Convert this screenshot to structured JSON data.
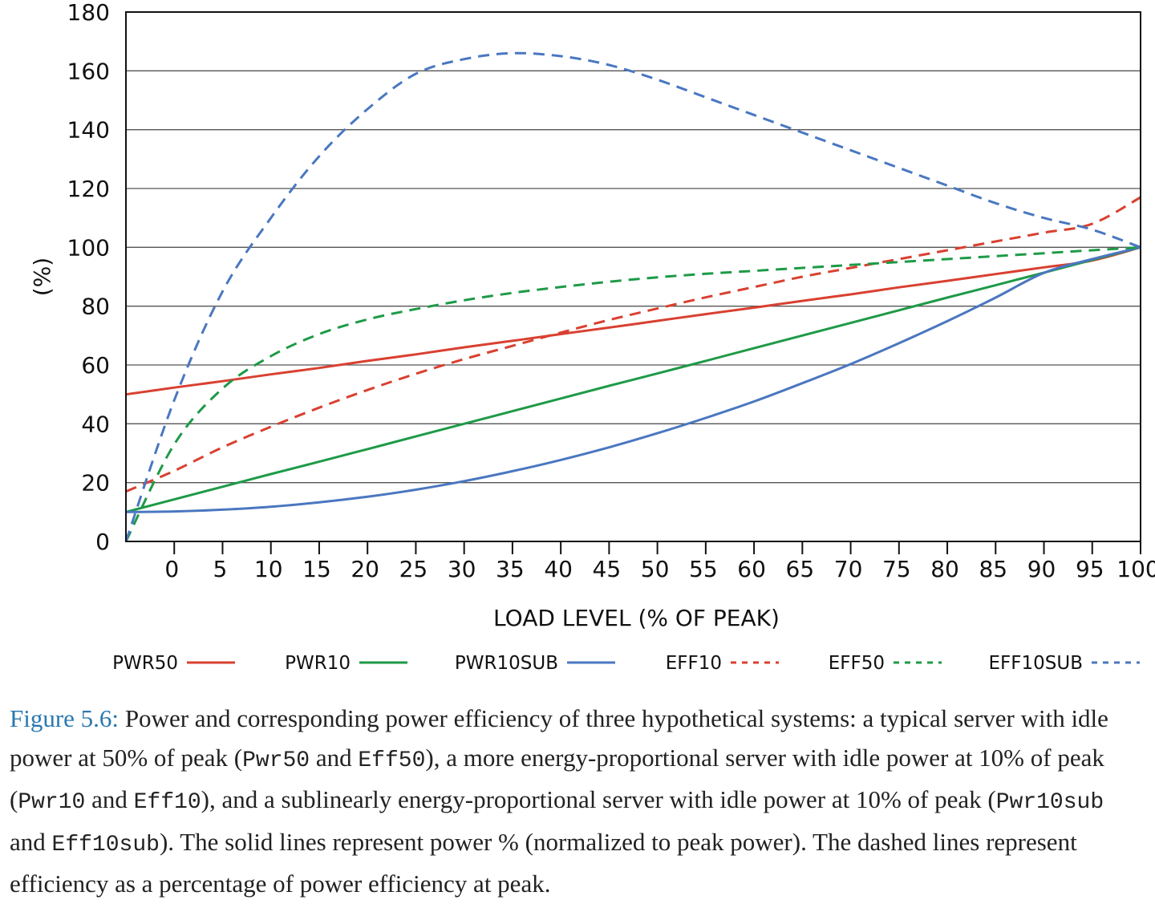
{
  "chart_data": {
    "type": "line",
    "title": "",
    "xlabel": "LOAD LEVEL (% OF PEAK)",
    "ylabel": "(%)",
    "xlim": [
      -5,
      100
    ],
    "ylim": [
      0,
      180
    ],
    "x_ticks": [
      0,
      5,
      10,
      15,
      20,
      25,
      30,
      35,
      40,
      45,
      50,
      55,
      60,
      65,
      70,
      75,
      80,
      85,
      90,
      95,
      100
    ],
    "x_tick_labels": [
      "0",
      "5",
      "10",
      "15",
      "20",
      "25",
      "30",
      "35",
      "40",
      "45",
      "50",
      "55",
      "60",
      "65",
      "70",
      "75",
      "80",
      "85",
      "90",
      "95",
      "100"
    ],
    "y_ticks": [
      0,
      20,
      40,
      60,
      80,
      100,
      120,
      140,
      160,
      180
    ],
    "y_tick_labels": [
      "0",
      "20",
      "40",
      "60",
      "80",
      "100",
      "120",
      "140",
      "160",
      "180"
    ],
    "grid": "horizontal",
    "legend_position": "bottom",
    "x": [
      -5,
      0,
      5,
      10,
      15,
      20,
      25,
      30,
      35,
      40,
      45,
      50,
      55,
      60,
      65,
      70,
      75,
      80,
      85,
      90,
      95,
      100
    ],
    "series": [
      {
        "name": "PWR50",
        "color": "#d94030",
        "style": "solid",
        "values": [
          50,
          52.3,
          54.5,
          56.8,
          59,
          61.4,
          63.6,
          66,
          68.2,
          70.5,
          72.7,
          75,
          77.3,
          79.5,
          81.8,
          84,
          86.4,
          88.6,
          90.9,
          93.2,
          95.5,
          100
        ]
      },
      {
        "name": "PWR10",
        "color": "#1e9a47",
        "style": "solid",
        "values": [
          10,
          14.3,
          18.6,
          22.9,
          27.1,
          31.4,
          35.7,
          40,
          44.3,
          48.6,
          52.9,
          57.1,
          61.4,
          65.7,
          70,
          74.3,
          78.6,
          82.9,
          87.1,
          91.4,
          95.7,
          100
        ]
      },
      {
        "name": "PWR10SUB",
        "color": "#4a77c0",
        "style": "solid",
        "values": [
          10,
          10.2,
          10.8,
          11.8,
          13.3,
          15.2,
          17.6,
          20.5,
          23.9,
          27.7,
          32,
          36.8,
          42,
          47.6,
          53.8,
          60.3,
          67.4,
          74.9,
          82.9,
          91.3,
          96,
          100
        ]
      },
      {
        "name": "EFF10",
        "color": "#d94030",
        "style": "dashed",
        "values": [
          17,
          24,
          32,
          39,
          45.5,
          51.5,
          57,
          62,
          66.5,
          71,
          75.3,
          79.2,
          83,
          86.5,
          90,
          93,
          96,
          99,
          102,
          105,
          108,
          117
        ]
      },
      {
        "name": "EFF50",
        "color": "#1e9a47",
        "style": "dashed",
        "values": [
          0,
          33,
          52,
          63,
          70.5,
          75.5,
          79,
          82,
          84.5,
          86.5,
          88.3,
          89.8,
          91,
          92,
          93,
          94,
          95,
          96,
          97,
          98,
          99,
          100
        ]
      },
      {
        "name": "EFF10SUB",
        "color": "#4a77c0",
        "style": "dashed",
        "values": [
          0,
          48,
          85,
          110,
          131,
          147,
          159,
          164,
          166,
          165,
          162,
          157,
          151,
          145,
          139,
          133,
          127,
          121,
          115,
          110,
          106,
          100
        ]
      }
    ]
  },
  "caption": {
    "figure_label": "Figure 5.6:",
    "parts": [
      " Power and corresponding power efficiency of three hypothetical systems: a typical server with idle power at 50% of peak (",
      "Pwr50",
      " and ",
      "Eff50",
      "), a more energy-proportional server with idle power at 10% of peak (",
      "Pwr10",
      " and ",
      "Eff10",
      "), and a sublinearly energy-proportional server with idle power at 10% of peak (",
      "Pwr10sub",
      " and ",
      "Eff10sub",
      "). The solid lines represent power % (normalized to peak power). The dashed lines represent efficiency as a percentage of power efficiency at peak."
    ]
  }
}
